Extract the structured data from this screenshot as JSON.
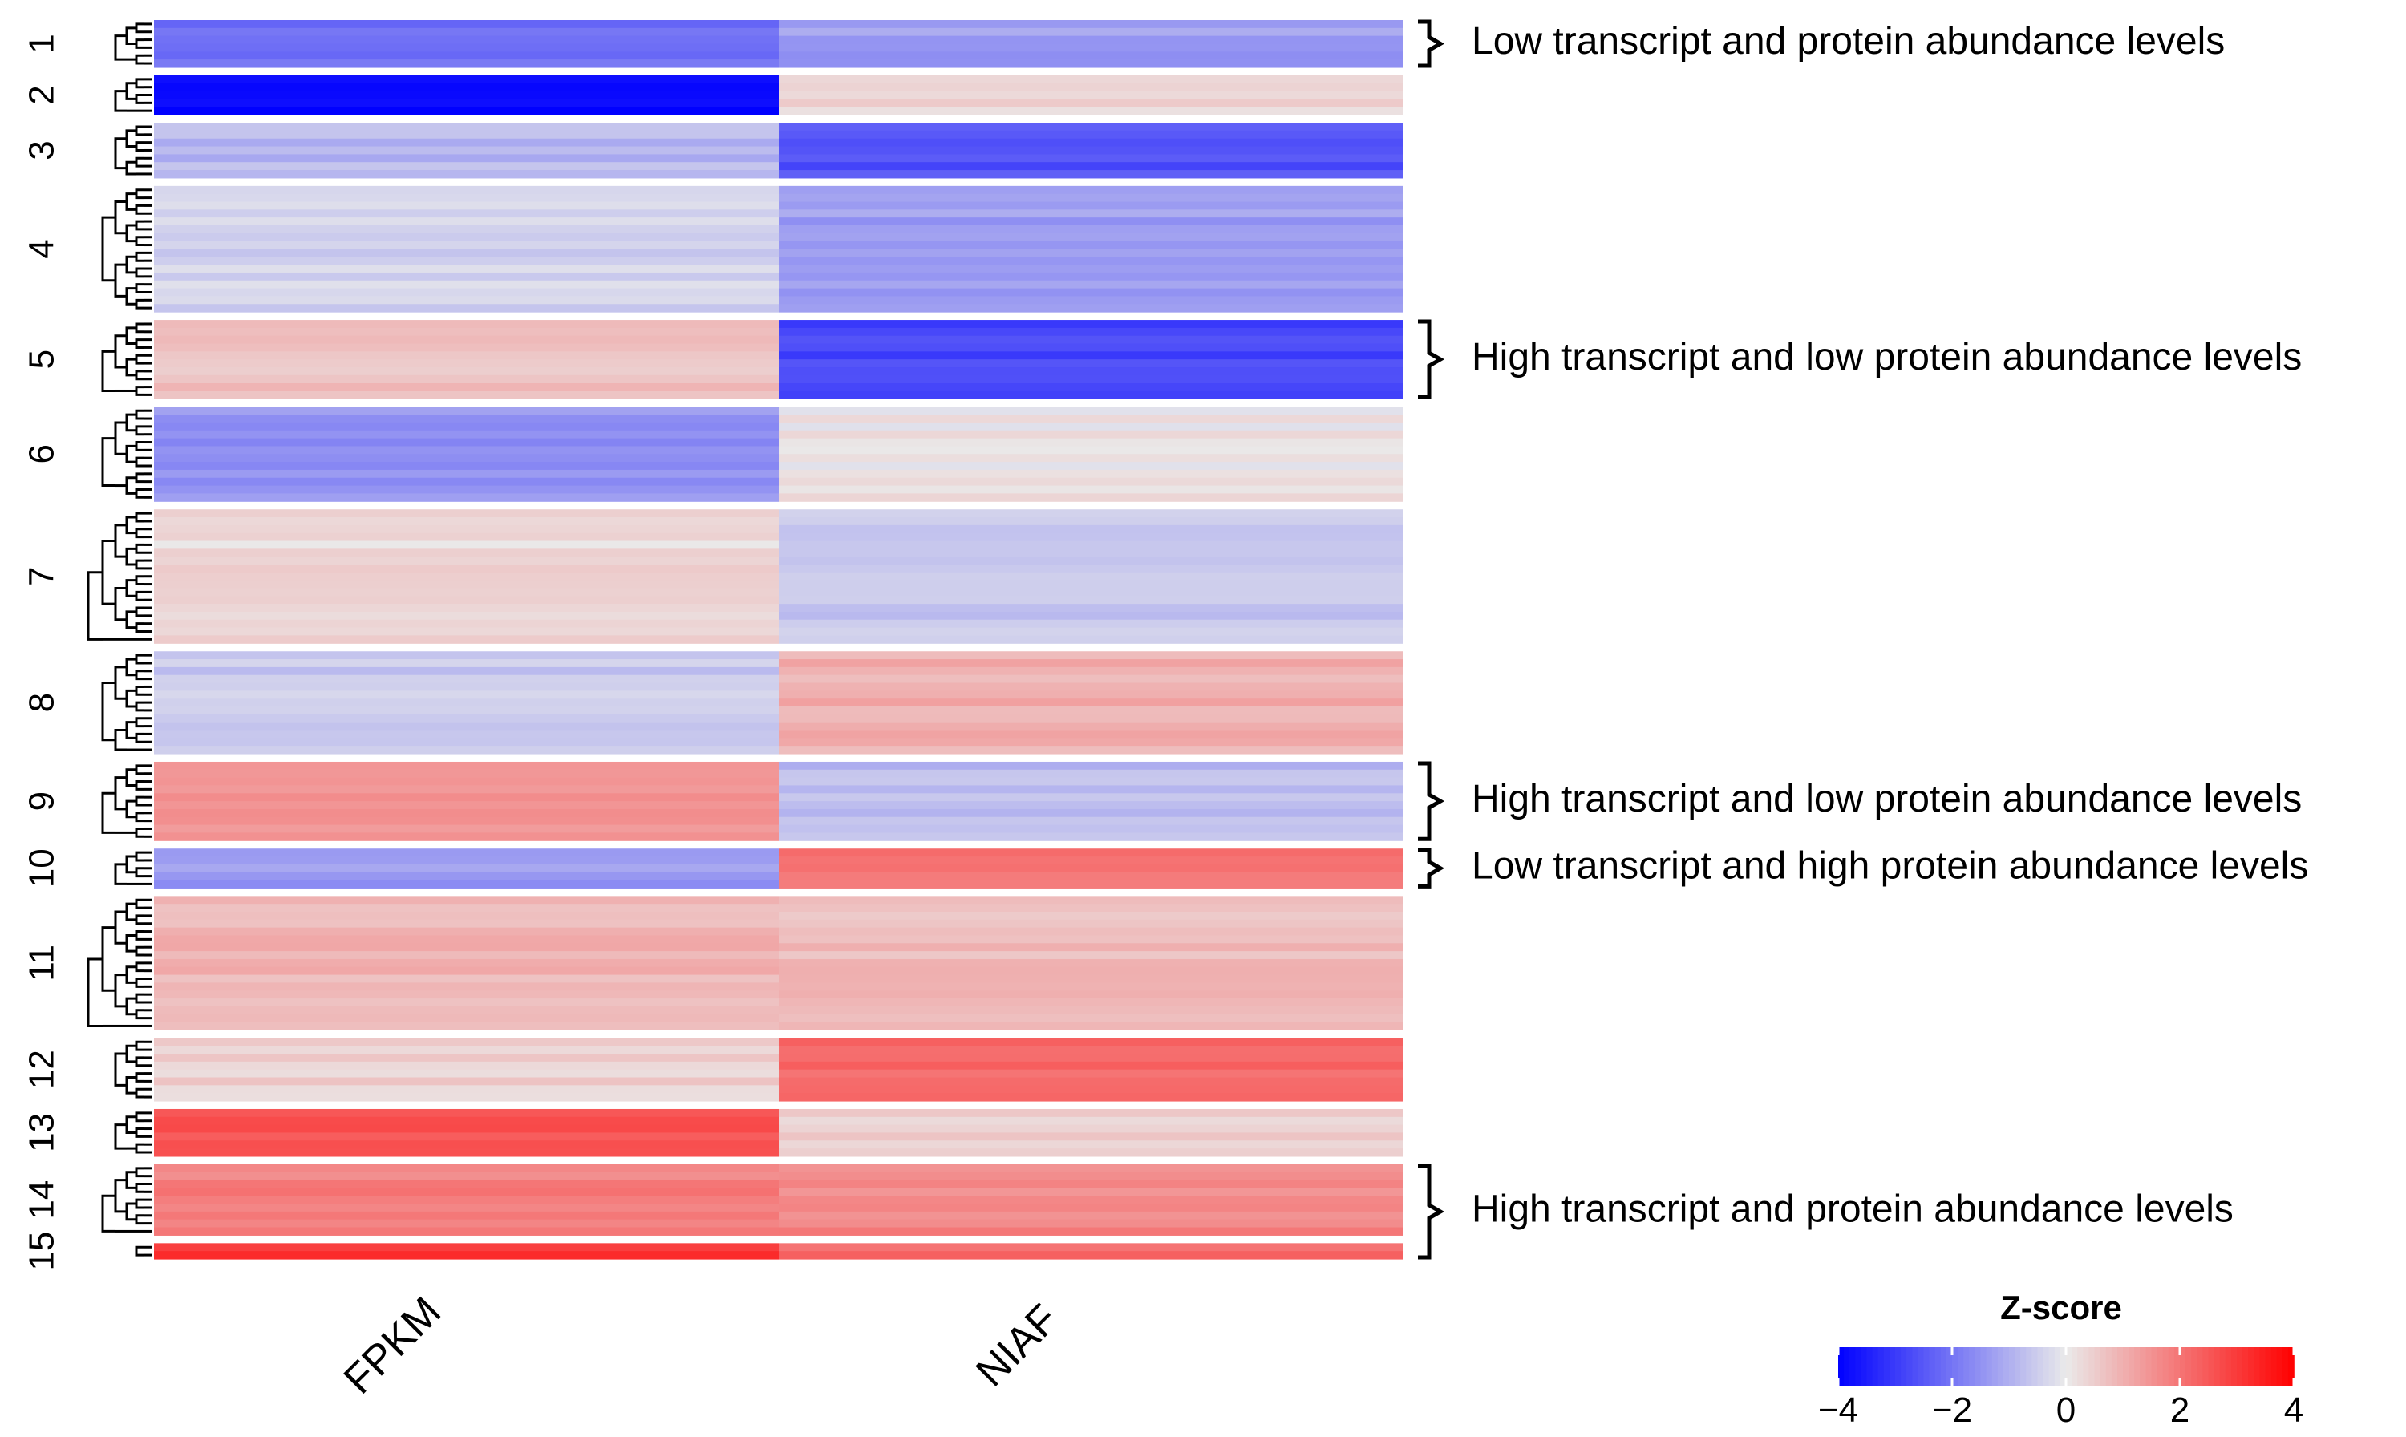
{
  "chart_data": {
    "type": "heatmap",
    "columns": [
      "FPKM",
      "NIAF"
    ],
    "clusters": [
      {
        "label": "1",
        "rows": 6,
        "values": [
          -2.1,
          -1.3
        ]
      },
      {
        "label": "2",
        "rows": 5,
        "values": [
          -3.8,
          0.4
        ]
      },
      {
        "label": "3",
        "rows": 7,
        "values": [
          -0.9,
          -2.6
        ]
      },
      {
        "label": "4",
        "rows": 16,
        "values": [
          -0.4,
          -1.3
        ]
      },
      {
        "label": "5",
        "rows": 10,
        "values": [
          0.7,
          -2.8
        ]
      },
      {
        "label": "6",
        "rows": 12,
        "values": [
          -1.5,
          0.1
        ]
      },
      {
        "label": "7",
        "rows": 17,
        "values": [
          0.3,
          -0.6
        ]
      },
      {
        "label": "8",
        "rows": 13,
        "values": [
          -0.6,
          1.0
        ]
      },
      {
        "label": "9",
        "rows": 10,
        "values": [
          1.6,
          -0.8
        ]
      },
      {
        "label": "10",
        "rows": 5,
        "values": [
          -1.4,
          1.9
        ]
      },
      {
        "label": "11",
        "rows": 17,
        "values": [
          0.9,
          0.8
        ]
      },
      {
        "label": "12",
        "rows": 8,
        "values": [
          0.4,
          2.2
        ]
      },
      {
        "label": "13",
        "rows": 6,
        "values": [
          2.5,
          0.4
        ]
      },
      {
        "label": "14",
        "rows": 9,
        "values": [
          1.8,
          1.7
        ]
      },
      {
        "label": "15",
        "rows": 2,
        "values": [
          3.0,
          2.2
        ]
      }
    ],
    "annotations": [
      {
        "from": "1",
        "to": "1",
        "text": "Low transcript and protein abundance levels"
      },
      {
        "from": "5",
        "to": "5",
        "text": "High transcript and low protein abundance levels"
      },
      {
        "from": "9",
        "to": "9",
        "text": "High transcript and low protein abundance levels"
      },
      {
        "from": "10",
        "to": "10",
        "text": "Low transcript and high protein abundance levels"
      },
      {
        "from": "14",
        "to": "15",
        "text": "High transcript and protein abundance levels"
      }
    ],
    "legend": {
      "title": "Z-score",
      "range": [
        -4,
        4
      ],
      "ticks": [
        -4,
        -2,
        0,
        2,
        4
      ],
      "tick_labels": [
        "−4",
        "−2",
        "0",
        "2",
        "4"
      ],
      "colors": {
        "low": "#0000ff",
        "mid": "#eaeaea",
        "high": "#ff0000"
      }
    }
  }
}
